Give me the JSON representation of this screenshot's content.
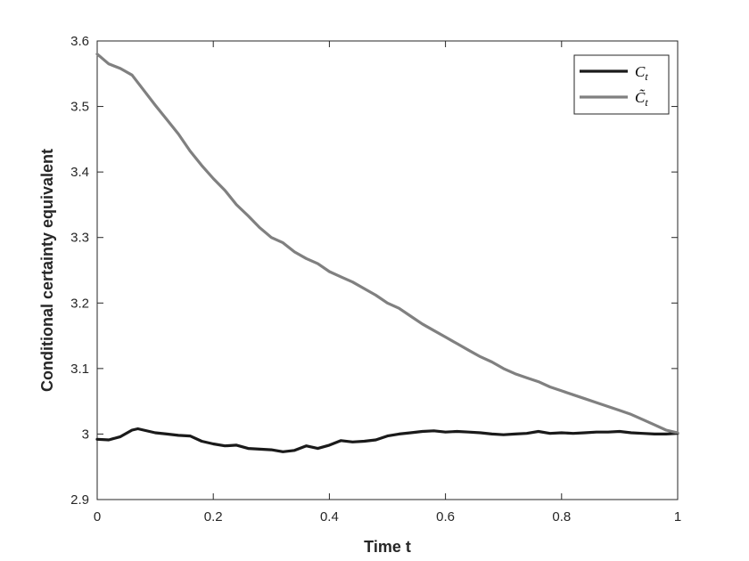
{
  "chart_data": {
    "type": "line",
    "xlabel": "Time t",
    "ylabel": "Conditional certainty equivalent",
    "xlim": [
      0,
      1
    ],
    "ylim": [
      2.9,
      3.6
    ],
    "xticks": [
      0,
      0.2,
      0.4,
      0.6,
      0.8,
      1
    ],
    "xtick_labels": [
      "0",
      "0.2",
      "0.4",
      "0.6",
      "0.8",
      "1"
    ],
    "yticks": [
      2.9,
      3,
      3.1,
      3.2,
      3.3,
      3.4,
      3.5,
      3.6
    ],
    "ytick_labels": [
      "2.9",
      "3",
      "3.1",
      "3.2",
      "3.3",
      "3.4",
      "3.5",
      "3.6"
    ],
    "grid": false,
    "legend_position": "top-right",
    "series": [
      {
        "name": "C",
        "name_sub": "t",
        "color": "#1a1a1a",
        "x": [
          0,
          0.02,
          0.04,
          0.06,
          0.07,
          0.08,
          0.1,
          0.12,
          0.14,
          0.16,
          0.18,
          0.2,
          0.22,
          0.24,
          0.26,
          0.28,
          0.3,
          0.32,
          0.34,
          0.36,
          0.38,
          0.4,
          0.42,
          0.44,
          0.46,
          0.48,
          0.5,
          0.52,
          0.54,
          0.56,
          0.58,
          0.6,
          0.62,
          0.64,
          0.66,
          0.68,
          0.7,
          0.72,
          0.74,
          0.76,
          0.78,
          0.8,
          0.82,
          0.84,
          0.86,
          0.88,
          0.9,
          0.92,
          0.94,
          0.96,
          0.98,
          1.0
        ],
        "y": [
          2.992,
          2.991,
          2.996,
          3.006,
          3.008,
          3.006,
          3.002,
          3.0,
          2.998,
          2.997,
          2.989,
          2.985,
          2.982,
          2.983,
          2.978,
          2.977,
          2.976,
          2.973,
          2.975,
          2.982,
          2.978,
          2.983,
          2.99,
          2.988,
          2.989,
          2.991,
          2.997,
          3.0,
          3.002,
          3.004,
          3.005,
          3.003,
          3.004,
          3.003,
          3.002,
          3.0,
          2.999,
          3.0,
          3.001,
          3.004,
          3.001,
          3.002,
          3.001,
          3.002,
          3.003,
          3.003,
          3.004,
          3.002,
          3.001,
          3.0,
          3.0,
          3.001
        ]
      },
      {
        "name": "C̃",
        "name_sub": "t",
        "color": "#808080",
        "x": [
          0,
          0.02,
          0.04,
          0.06,
          0.08,
          0.1,
          0.12,
          0.14,
          0.16,
          0.18,
          0.2,
          0.22,
          0.24,
          0.26,
          0.28,
          0.3,
          0.32,
          0.34,
          0.36,
          0.38,
          0.4,
          0.42,
          0.44,
          0.46,
          0.48,
          0.5,
          0.52,
          0.54,
          0.56,
          0.58,
          0.6,
          0.62,
          0.64,
          0.66,
          0.68,
          0.7,
          0.72,
          0.74,
          0.76,
          0.78,
          0.8,
          0.82,
          0.84,
          0.86,
          0.88,
          0.9,
          0.92,
          0.94,
          0.96,
          0.98,
          1.0
        ],
        "y": [
          3.58,
          3.565,
          3.558,
          3.548,
          3.525,
          3.502,
          3.48,
          3.458,
          3.432,
          3.41,
          3.39,
          3.372,
          3.35,
          3.333,
          3.315,
          3.3,
          3.292,
          3.278,
          3.268,
          3.26,
          3.248,
          3.24,
          3.232,
          3.222,
          3.212,
          3.2,
          3.192,
          3.18,
          3.168,
          3.158,
          3.148,
          3.138,
          3.128,
          3.118,
          3.11,
          3.1,
          3.092,
          3.086,
          3.08,
          3.072,
          3.066,
          3.06,
          3.054,
          3.048,
          3.042,
          3.036,
          3.03,
          3.022,
          3.014,
          3.006,
          3.002
        ]
      }
    ]
  }
}
